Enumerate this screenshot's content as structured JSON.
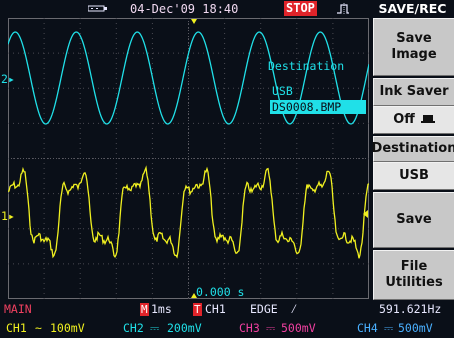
{
  "status_bar": {
    "usb_icon": "usb-connected-icon",
    "datetime": "04-Dec'09 18:40",
    "run_state": "STOP",
    "trigger_icon": "trigger-waveform-icon"
  },
  "menu": {
    "title": "SAVE/REC",
    "keys": [
      {
        "line1": "Save",
        "line2": "Image"
      },
      {
        "header": "Ink Saver",
        "value": "Off",
        "value_icon": "printer-icon"
      },
      {
        "header": "Destination",
        "value": "USB"
      },
      {
        "line1": "Save"
      },
      {
        "line1": "File",
        "line2": "Utilities"
      }
    ]
  },
  "overlay": {
    "destination_title": "Destination",
    "destination_device": "USB",
    "destination_file": "DS0008.BMP",
    "time_offset": "0.000 s"
  },
  "markers": {
    "ch2_marker": "2",
    "ch1_marker": "1"
  },
  "bottom": {
    "mode": "MAIN",
    "timebase_badge": "M",
    "timebase": "1ms",
    "trigger_badge": "T",
    "trigger_source": "CH1",
    "trigger_type": "EDGE",
    "trigger_slope": "rising-edge-icon",
    "frequency": "591.621Hz",
    "channels": [
      {
        "label": "CH1",
        "coupling": "~",
        "scale": "100mV"
      },
      {
        "label": "CH2",
        "coupling": "⎓",
        "scale": "200mV"
      },
      {
        "label": "CH3",
        "coupling": "⎓",
        "scale": "500mV"
      },
      {
        "label": "CH4",
        "coupling": "⎓",
        "scale": "500mV"
      }
    ]
  },
  "colors": {
    "ch1": "#f0f020",
    "ch2": "#20e0e8",
    "ch3": "#f040a0",
    "ch4": "#4ab0ff",
    "stop_badge": "#e0242a",
    "softkey": "#c8c8c8"
  }
}
